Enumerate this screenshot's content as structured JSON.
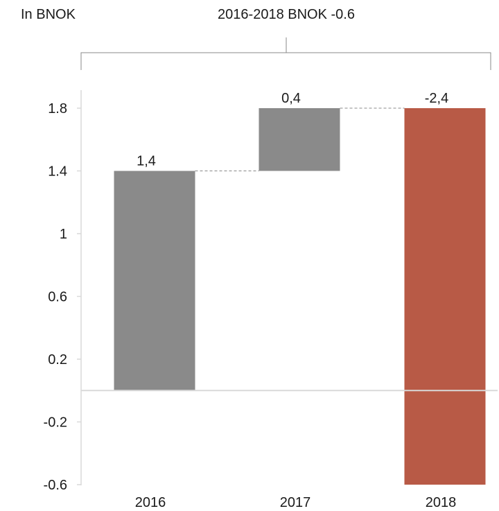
{
  "unit_label": "In BNOK",
  "bracket_label": "2016-2018 BNOK -0.6",
  "colors": {
    "increase": "#8a8a8a",
    "total": "#b85a46",
    "axis": "#d9d9d9",
    "connector": "#888888",
    "text": "#1a1a1a"
  },
  "chart_data": {
    "type": "bar",
    "subtype": "waterfall",
    "categories": [
      "2016",
      "2017",
      "2018"
    ],
    "bars": [
      {
        "category": "2016",
        "start": 0,
        "end": 1.4,
        "label": "1,4",
        "kind": "increase"
      },
      {
        "category": "2017",
        "start": 1.4,
        "end": 1.8,
        "label": "0,4",
        "kind": "increase"
      },
      {
        "category": "2018",
        "start": 1.8,
        "end": -0.6,
        "label": "-2,4",
        "kind": "total"
      }
    ],
    "y_ticks": [
      1.8,
      1.4,
      1,
      0.6,
      0.2,
      -0.2,
      -0.6
    ],
    "y_tick_labels": [
      "1.8",
      "1.4",
      "1",
      "0.6",
      "0.2",
      "-0.2",
      "-0.6"
    ],
    "ylim": [
      -0.6,
      1.8
    ],
    "grid": false,
    "legend": "none"
  }
}
